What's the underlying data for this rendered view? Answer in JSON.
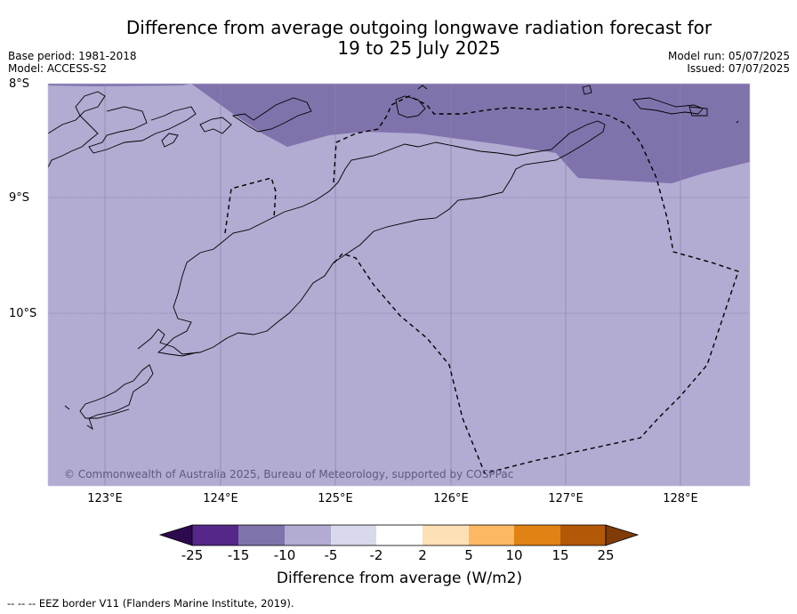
{
  "title_line1": "Difference from average outgoing longwave radiation forecast for",
  "title_line2": "19 to 25 July 2025",
  "base_period": "Base period: 1981-2018",
  "model": "Model: ACCESS-S2",
  "model_run": "Model run: 05/07/2025",
  "issued": "Issued: 07/07/2025",
  "lat_labels": [
    "8°S",
    "9°S",
    "10°S"
  ],
  "lon_labels": [
    "123°E",
    "124°E",
    "125°E",
    "126°E",
    "127°E",
    "128°E"
  ],
  "copyright": "© Commonwealth of Australia 2025, Bureau of Meteorology, supported by COSPPac",
  "colorbar": {
    "ticks": [
      "-25",
      "-15",
      "-10",
      "-5",
      "-2",
      "2",
      "5",
      "10",
      "15",
      "25"
    ],
    "colors": [
      "#2d0a4e",
      "#542788",
      "#8073ac",
      "#b2abd2",
      "#d8daeb",
      "#ffffff",
      "#fee0b6",
      "#fdb863",
      "#e08214",
      "#b35806",
      "#7f3b08"
    ],
    "label": "Difference from average (W/m2)"
  },
  "footnote": "--  --  -- EEZ border V11 (Flanders Marine Institute, 2019).",
  "colors": {
    "base_fill": "#b2abd2",
    "dark_fill": "#8073ac"
  }
}
